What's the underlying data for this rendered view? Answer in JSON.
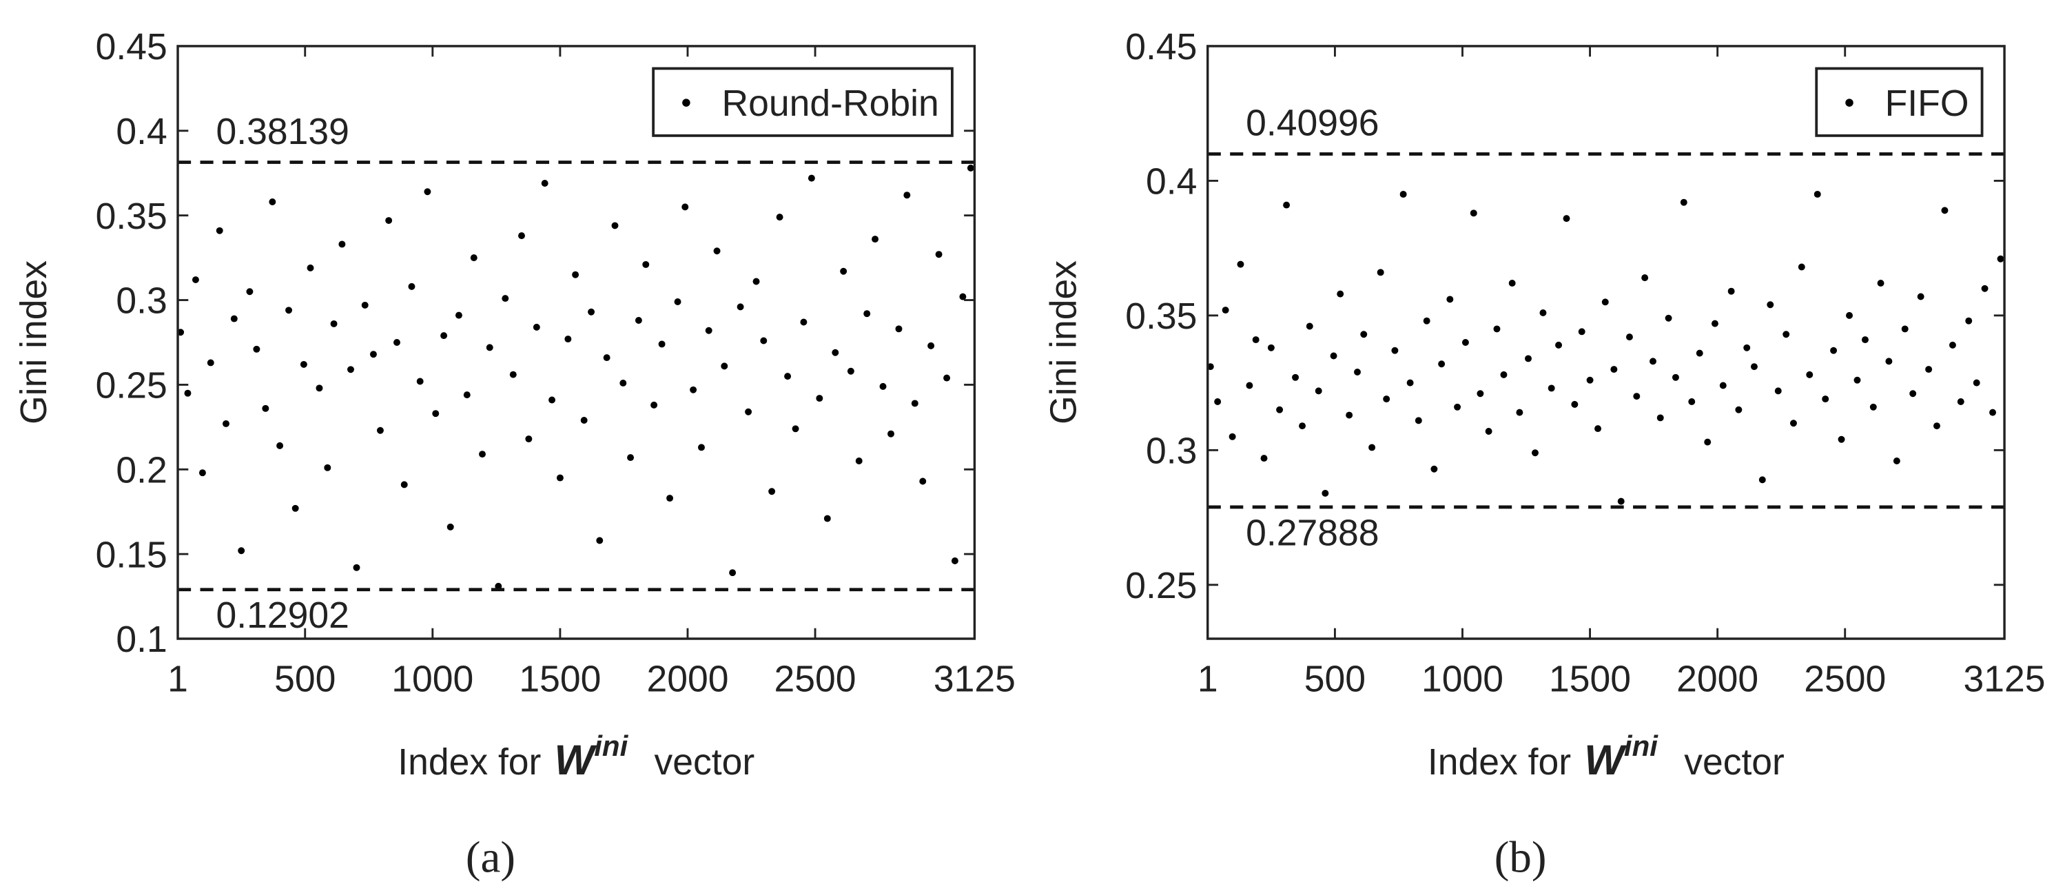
{
  "chart_data": [
    {
      "type": "scatter",
      "panel_label": "(a)",
      "ylabel": "Gini index",
      "xlabel": {
        "prefix": "Index for",
        "symbol": "W",
        "superscript": "ini",
        "suffix": "vector"
      },
      "xlim": [
        1,
        3125
      ],
      "xticks": [
        1,
        500,
        1000,
        1500,
        2000,
        2500,
        3125
      ],
      "ylim": [
        0.1,
        0.45
      ],
      "yticks": [
        0.1,
        0.15,
        0.2,
        0.25,
        0.3,
        0.35,
        0.4,
        0.45
      ],
      "hlines": [
        0.38139,
        0.12902
      ],
      "legend": "upper right",
      "series": [
        {
          "name": "Round-Robin",
          "color": "#000000",
          "x": [
            12,
            40,
            71,
            98,
            130,
            165,
            190,
            222,
            250,
            283,
            310,
            345,
            372,
            401,
            436,
            462,
            495,
            521,
            556,
            588,
            613,
            645,
            679,
            702,
            735,
            768,
            795,
            828,
            860,
            889,
            918,
            951,
            980,
            1012,
            1044,
            1070,
            1103,
            1135,
            1162,
            1195,
            1224,
            1258,
            1285,
            1316,
            1349,
            1377,
            1408,
            1440,
            1468,
            1500,
            1531,
            1560,
            1594,
            1622,
            1655,
            1683,
            1715,
            1747,
            1776,
            1808,
            1836,
            1868,
            1899,
            1930,
            1961,
            1990,
            2022,
            2054,
            2083,
            2115,
            2144,
            2176,
            2207,
            2238,
            2269,
            2298,
            2330,
            2361,
            2392,
            2423,
            2455,
            2486,
            2517,
            2548,
            2579,
            2611,
            2640,
            2672,
            2703,
            2735,
            2766,
            2797,
            2828,
            2860,
            2891,
            2922,
            2954,
            2985,
            3016,
            3048,
            3079,
            3110
          ],
          "values": [
            0.281,
            0.245,
            0.312,
            0.198,
            0.263,
            0.341,
            0.227,
            0.289,
            0.152,
            0.305,
            0.271,
            0.236,
            0.358,
            0.214,
            0.294,
            0.177,
            0.262,
            0.319,
            0.248,
            0.201,
            0.286,
            0.333,
            0.259,
            0.142,
            0.297,
            0.268,
            0.223,
            0.347,
            0.275,
            0.191,
            0.308,
            0.252,
            0.364,
            0.233,
            0.279,
            0.166,
            0.291,
            0.244,
            0.325,
            0.209,
            0.272,
            0.131,
            0.301,
            0.256,
            0.338,
            0.218,
            0.284,
            0.369,
            0.241,
            0.195,
            0.277,
            0.315,
            0.229,
            0.293,
            0.158,
            0.266,
            0.344,
            0.251,
            0.207,
            0.288,
            0.321,
            0.238,
            0.274,
            0.183,
            0.299,
            0.355,
            0.247,
            0.213,
            0.282,
            0.329,
            0.261,
            0.139,
            0.296,
            0.234,
            0.311,
            0.276,
            0.187,
            0.349,
            0.255,
            0.224,
            0.287,
            0.372,
            0.242,
            0.171,
            0.269,
            0.317,
            0.258,
            0.205,
            0.292,
            0.336,
            0.249,
            0.221,
            0.283,
            0.362,
            0.239,
            0.193,
            0.273,
            0.327,
            0.254,
            0.146,
            0.302,
            0.378
          ]
        }
      ]
    },
    {
      "type": "scatter",
      "panel_label": "(b)",
      "ylabel": "Gini index",
      "xlabel": {
        "prefix": "Index for",
        "symbol": "W",
        "superscript": "ini",
        "suffix": "vector"
      },
      "xlim": [
        1,
        3125
      ],
      "xticks": [
        1,
        500,
        1000,
        1500,
        2000,
        2500,
        3125
      ],
      "ylim": [
        0.23,
        0.45
      ],
      "yticks": [
        0.25,
        0.3,
        0.35,
        0.4,
        0.45
      ],
      "hlines": [
        0.40996,
        0.27888
      ],
      "legend": "upper right",
      "series": [
        {
          "name": "FIFO",
          "color": "#000000",
          "x": [
            12,
            40,
            71,
            98,
            130,
            165,
            190,
            222,
            250,
            283,
            310,
            345,
            372,
            401,
            436,
            462,
            495,
            521,
            556,
            588,
            613,
            645,
            679,
            702,
            735,
            768,
            795,
            828,
            860,
            889,
            918,
            951,
            980,
            1012,
            1044,
            1070,
            1103,
            1135,
            1162,
            1195,
            1224,
            1258,
            1285,
            1316,
            1349,
            1377,
            1408,
            1440,
            1468,
            1500,
            1531,
            1560,
            1594,
            1622,
            1655,
            1683,
            1715,
            1747,
            1776,
            1808,
            1836,
            1868,
            1899,
            1930,
            1961,
            1990,
            2022,
            2054,
            2083,
            2115,
            2144,
            2176,
            2207,
            2238,
            2269,
            2298,
            2330,
            2361,
            2392,
            2423,
            2455,
            2486,
            2517,
            2548,
            2579,
            2611,
            2640,
            2672,
            2703,
            2735,
            2766,
            2797,
            2828,
            2860,
            2891,
            2922,
            2954,
            2985,
            3016,
            3048,
            3079,
            3110
          ],
          "values": [
            0.331,
            0.318,
            0.352,
            0.305,
            0.369,
            0.324,
            0.341,
            0.297,
            0.338,
            0.315,
            0.391,
            0.327,
            0.309,
            0.346,
            0.322,
            0.284,
            0.335,
            0.358,
            0.313,
            0.329,
            0.343,
            0.301,
            0.366,
            0.319,
            0.337,
            0.395,
            0.325,
            0.311,
            0.348,
            0.293,
            0.332,
            0.356,
            0.316,
            0.34,
            0.388,
            0.321,
            0.307,
            0.345,
            0.328,
            0.362,
            0.314,
            0.334,
            0.299,
            0.351,
            0.323,
            0.339,
            0.386,
            0.317,
            0.344,
            0.326,
            0.308,
            0.355,
            0.33,
            0.281,
            0.342,
            0.32,
            0.364,
            0.333,
            0.312,
            0.349,
            0.327,
            0.392,
            0.318,
            0.336,
            0.303,
            0.347,
            0.324,
            0.359,
            0.315,
            0.338,
            0.331,
            0.289,
            0.354,
            0.322,
            0.343,
            0.31,
            0.368,
            0.328,
            0.395,
            0.319,
            0.337,
            0.304,
            0.35,
            0.326,
            0.341,
            0.316,
            0.362,
            0.333,
            0.296,
            0.345,
            0.321,
            0.357,
            0.33,
            0.309,
            0.389,
            0.339,
            0.318,
            0.348,
            0.325,
            0.36,
            0.314,
            0.371
          ]
        }
      ]
    }
  ]
}
